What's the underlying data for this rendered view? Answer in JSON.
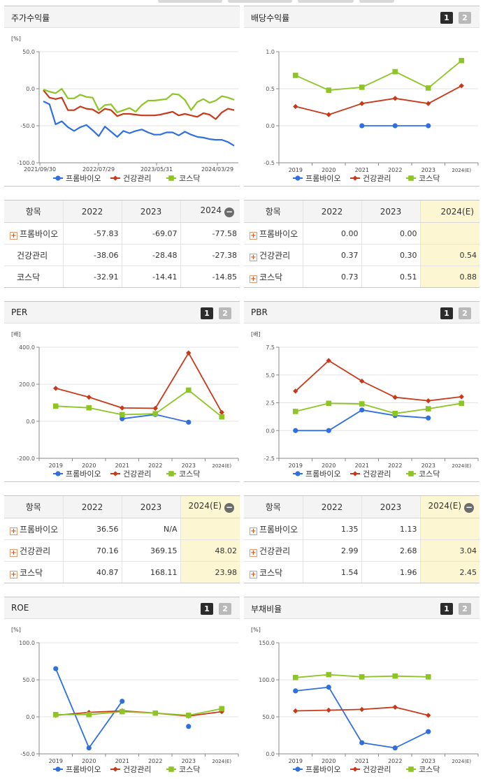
{
  "colors": {
    "blue": "#2f6fe0",
    "red": "#c8391a",
    "green": "#8cc524",
    "grid": "#e3e3e3",
    "axis": "#888888",
    "highlight": "#fdf6d2"
  },
  "legend": [
    "프롬바이오",
    "건강관리",
    "코스닥"
  ],
  "buttons": [
    "1",
    "2"
  ],
  "charts": {
    "stock": {
      "title": "주가수익률",
      "chart_data": {
        "type": "line",
        "unit": "[%]",
        "yticks": [
          "50.0",
          "0.0",
          "-50.0",
          "-100.0"
        ],
        "ylim": [
          -100,
          50
        ],
        "xticks": [
          "2021/09/30",
          "2022/07/29",
          "2023/05/31",
          "2024/03/29"
        ],
        "legend_position": "bottom",
        "series": [
          {
            "name": "프롬바이오",
            "values": [
              -17,
              -21,
              -48,
              -44,
              -52,
              -57,
              -52,
              -49,
              -56,
              -64,
              -51,
              -58,
              -65,
              -57,
              -60,
              -57,
              -55,
              -59,
              -62,
              -62,
              -59,
              -59,
              -63,
              -58,
              -62,
              -65,
              -66,
              -68,
              -69,
              -69,
              -72,
              -77
            ]
          },
          {
            "name": "건강관리",
            "values": [
              -2,
              -12,
              -14,
              -12,
              -29,
              -29,
              -24,
              -27,
              -28,
              -33,
              -27,
              -29,
              -37,
              -34,
              -34,
              -35,
              -36,
              -36,
              -36,
              -35,
              -33,
              -31,
              -36,
              -34,
              -36,
              -38,
              -33,
              -35,
              -41,
              -32,
              -27,
              -29
            ]
          },
          {
            "name": "코스닥",
            "values": [
              -1,
              -4,
              -6,
              0,
              -13,
              -13,
              -8,
              -11,
              -12,
              -29,
              -22,
              -21,
              -32,
              -29,
              -26,
              -31,
              -22,
              -16,
              -16,
              -15,
              -14,
              -7,
              -8,
              -15,
              -29,
              -18,
              -14,
              -19,
              -16,
              -10,
              -12,
              -15
            ]
          }
        ]
      }
    },
    "dividend": {
      "title": "배당수익률",
      "chart_data": {
        "type": "line",
        "unit": "",
        "yticks": [
          "1.0",
          "0.5",
          "0.0",
          "-0.5"
        ],
        "ylim": [
          -0.5,
          1.0
        ],
        "categories": [
          "2019",
          "2020",
          "2021",
          "2022",
          "2023",
          "2024(E)"
        ],
        "legend_position": "bottom",
        "series": [
          {
            "name": "프롬바이오",
            "values": [
              null,
              null,
              0.0,
              0.0,
              0.0,
              null
            ]
          },
          {
            "name": "건강관리",
            "values": [
              0.26,
              0.15,
              0.3,
              0.37,
              0.3,
              0.54
            ]
          },
          {
            "name": "코스닥",
            "values": [
              0.68,
              0.48,
              0.52,
              0.73,
              0.51,
              0.88
            ]
          }
        ]
      }
    },
    "per": {
      "title": "PER",
      "chart_data": {
        "type": "line",
        "unit": "[배]",
        "yticks": [
          "400.0",
          "200.0",
          "0.0",
          "-200.0"
        ],
        "ylim": [
          -200,
          400
        ],
        "categories": [
          "2019",
          "2020",
          "2021",
          "2022",
          "2023",
          "2024(E)"
        ],
        "legend_position": "bottom",
        "series": [
          {
            "name": "프롬바이오",
            "values": [
              null,
              null,
              14,
              36.56,
              -5,
              null
            ]
          },
          {
            "name": "건강관리",
            "values": [
              178,
              130,
              72,
              70.16,
              369.15,
              48.02
            ]
          },
          {
            "name": "코스닥",
            "values": [
              82,
              73,
              36,
              40.87,
              168.11,
              23.98
            ]
          }
        ]
      }
    },
    "pbr": {
      "title": "PBR",
      "chart_data": {
        "type": "line",
        "unit": "[배]",
        "yticks": [
          "7.5",
          "5.0",
          "2.5",
          "0.0",
          "-2.5"
        ],
        "ylim": [
          -2.5,
          7.5
        ],
        "categories": [
          "2019",
          "2020",
          "2021",
          "2022",
          "2023",
          "2024(E)"
        ],
        "legend_position": "bottom",
        "series": [
          {
            "name": "프롬바이오",
            "values": [
              0.0,
              0.0,
              1.85,
              1.35,
              1.13,
              null
            ]
          },
          {
            "name": "건강관리",
            "values": [
              3.55,
              6.3,
              4.45,
              2.99,
              2.68,
              3.04
            ]
          },
          {
            "name": "코스닥",
            "values": [
              1.72,
              2.45,
              2.4,
              1.54,
              1.96,
              2.45
            ]
          }
        ]
      }
    },
    "roe": {
      "title": "ROE",
      "chart_data": {
        "type": "line",
        "unit": "[%]",
        "yticks": [
          "100.0",
          "50.0",
          "0.0",
          "-50.0"
        ],
        "ylim": [
          -50,
          100
        ],
        "categories": [
          "2019",
          "2020",
          "2021",
          "2022",
          "2023",
          "2024(E)"
        ],
        "legend_position": "bottom",
        "series": [
          {
            "name": "프롬바이오",
            "values": [
              65,
              -42,
              21,
              null,
              -13,
              null
            ]
          },
          {
            "name": "건강관리",
            "values": [
              2,
              6,
              8,
              5,
              1,
              7
            ]
          },
          {
            "name": "코스닥",
            "values": [
              3,
              3,
              7,
              5,
              2,
              11
            ]
          }
        ]
      }
    },
    "debt": {
      "title": "부채비율",
      "chart_data": {
        "type": "line",
        "unit": "[%]",
        "yticks": [
          "150.0",
          "100.0",
          "50.0",
          "0.0"
        ],
        "ylim": [
          0,
          150
        ],
        "categories": [
          "2019",
          "2020",
          "2021",
          "2022",
          "2023",
          "2024(E)"
        ],
        "legend_position": "bottom",
        "series": [
          {
            "name": "프롬바이오",
            "values": [
              85,
              90,
              15,
              8,
              30,
              null
            ]
          },
          {
            "name": "건강관리",
            "values": [
              58,
              59,
              60,
              63,
              52,
              null
            ]
          },
          {
            "name": "코스닥",
            "values": [
              103,
              107,
              104,
              105,
              104,
              null
            ]
          }
        ]
      }
    }
  },
  "tables": {
    "stock": {
      "headers": [
        "항목",
        "2022",
        "2023",
        "2024"
      ],
      "rows": [
        {
          "name": "프롬바이오",
          "expand": true,
          "values": [
            "-57.83",
            "-69.07",
            "-77.58"
          ]
        },
        {
          "name": "건강관리",
          "expand": false,
          "values": [
            "-38.06",
            "-28.48",
            "-27.38"
          ]
        },
        {
          "name": "코스닥",
          "expand": false,
          "values": [
            "-32.91",
            "-14.41",
            "-14.85"
          ]
        }
      ]
    },
    "dividend": {
      "headers": [
        "항목",
        "2022",
        "2023",
        "2024(E)"
      ],
      "rows": [
        {
          "name": "프롬바이오",
          "expand": true,
          "values": [
            "0.00",
            "0.00",
            ""
          ]
        },
        {
          "name": "건강관리",
          "expand": true,
          "values": [
            "0.37",
            "0.30",
            "0.54"
          ]
        },
        {
          "name": "코스닥",
          "expand": true,
          "values": [
            "0.73",
            "0.51",
            "0.88"
          ]
        }
      ]
    },
    "per": {
      "headers": [
        "항목",
        "2022",
        "2023",
        "2024(E)"
      ],
      "rows": [
        {
          "name": "프롬바이오",
          "expand": true,
          "values": [
            "36.56",
            "N/A",
            ""
          ]
        },
        {
          "name": "건강관리",
          "expand": true,
          "values": [
            "70.16",
            "369.15",
            "48.02"
          ]
        },
        {
          "name": "코스닥",
          "expand": true,
          "values": [
            "40.87",
            "168.11",
            "23.98"
          ]
        }
      ]
    },
    "pbr": {
      "headers": [
        "항목",
        "2022",
        "2023",
        "2024(E)"
      ],
      "rows": [
        {
          "name": "프롬바이오",
          "expand": true,
          "values": [
            "1.35",
            "1.13",
            ""
          ]
        },
        {
          "name": "건강관리",
          "expand": true,
          "values": [
            "2.99",
            "2.68",
            "3.04"
          ]
        },
        {
          "name": "코스닥",
          "expand": true,
          "values": [
            "1.54",
            "1.96",
            "2.45"
          ]
        }
      ]
    }
  }
}
